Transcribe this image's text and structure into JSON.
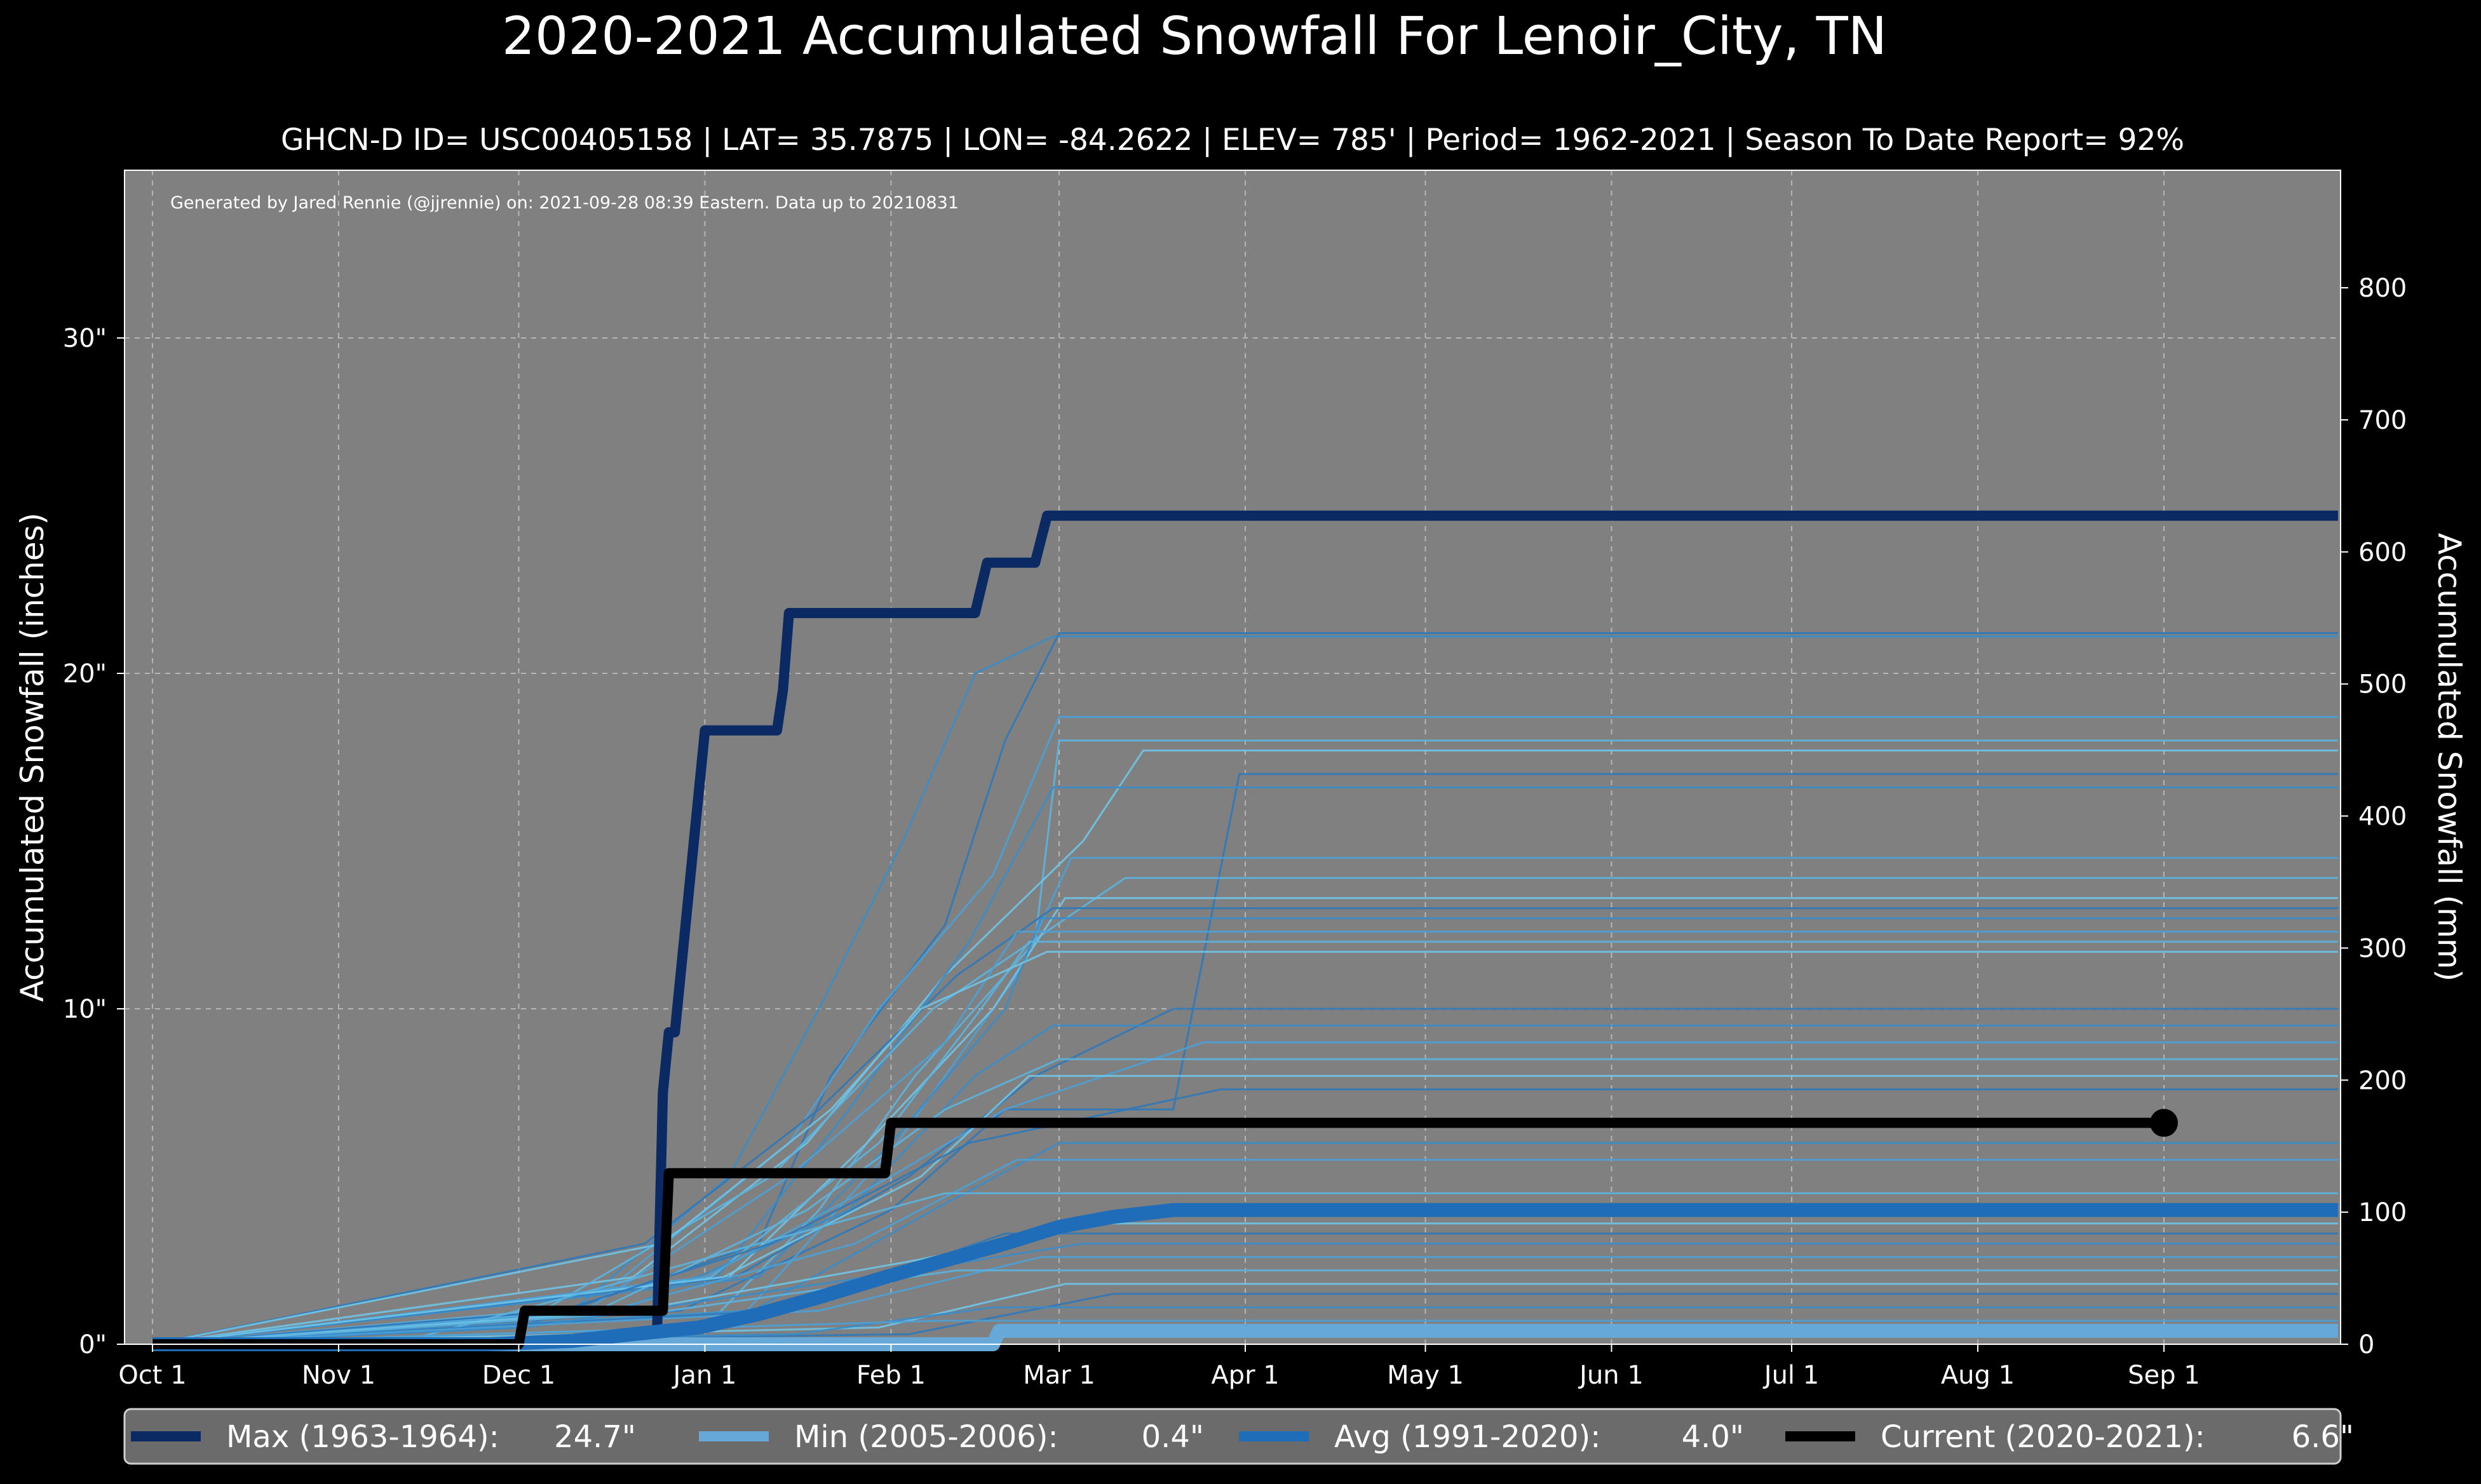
{
  "title": "2020-2021 Accumulated Snowfall For Lenoir_City, TN",
  "subtitle": "GHCN-D ID= USC00405158 | LAT= 35.7875 | LON= -84.2622 | ELEV= 785' | Period= 1962-2021 | Season To Date Report= 92%",
  "credit": "Generated by Jared Rennie (@jjrennie) on: 2021-09-28 08:39 Eastern. Data up to 20210831",
  "colors": {
    "background": "#000000",
    "plot_background": "#808080",
    "max": "#0b2a63",
    "min": "#66a9d9",
    "avg": "#1f6cb8",
    "current": "#000000",
    "historical": [
      "#2f78b8",
      "#3a8cc8",
      "#4aa0d6",
      "#5bb2df",
      "#6fc3e6"
    ]
  },
  "chart_data": {
    "type": "line",
    "grid": true,
    "ylim_in": [
      0,
      35
    ],
    "ylim_mm": [
      0,
      889
    ],
    "xlabel": "",
    "ylabel_left": "Accumulated Snowfall (inches)",
    "ylabel_right": "Accumulated Snowfall (mm)",
    "x_ticks": [
      "Oct 1",
      "Nov 1",
      "Dec 1",
      "Jan 1",
      "Feb 1",
      "Mar 1",
      "Apr 1",
      "May 1",
      "Jun 1",
      "Jul 1",
      "Aug 1",
      "Sep 1"
    ],
    "y_ticks_left": [
      "0\"",
      "10\"",
      "20\"",
      "30\""
    ],
    "y_tick_values_left": [
      0,
      10,
      20,
      30
    ],
    "y_ticks_right": [
      "0",
      "100",
      "200",
      "300",
      "400",
      "500",
      "600",
      "700",
      "800"
    ],
    "y_tick_values_right": [
      0,
      100,
      200,
      300,
      400,
      500,
      600,
      700,
      800
    ],
    "legend_position": "bottom",
    "legend": [
      {
        "label": "Max (1963-1964):",
        "value": "24.7\"",
        "color": "#0b2a63"
      },
      {
        "label": "Min (2005-2006):",
        "value": "0.4\"",
        "color": "#66a9d9"
      },
      {
        "label": "Avg (1991-2020):",
        "value": "4.0\"",
        "color": "#1f6cb8"
      },
      {
        "label": "Current (2020-2021):",
        "value": "6.6\"",
        "color": "#000000"
      }
    ],
    "series": [
      {
        "name": "Max (1963-1964)",
        "color": "#0b2a63",
        "x": [
          "Oct 1",
          "Nov 15",
          "Dec 1",
          "Dec 15",
          "Dec 24",
          "Dec 25",
          "Dec 26",
          "Dec 27",
          "Jan 1",
          "Jan 13",
          "Jan 14",
          "Jan 15",
          "Feb 15",
          "Feb 17",
          "Feb 25",
          "Feb 27",
          "Sep 30"
        ],
        "y": [
          0,
          0,
          0,
          0,
          0,
          7.5,
          9.3,
          9.3,
          18.3,
          18.3,
          19.5,
          21.8,
          21.8,
          23.3,
          23.3,
          24.7,
          24.7
        ]
      },
      {
        "name": "Min (2005-2006)",
        "color": "#66a9d9",
        "x": [
          "Oct 1",
          "Feb 18",
          "Feb 19",
          "Sep 30"
        ],
        "y": [
          0,
          0,
          0.4,
          0.4
        ]
      },
      {
        "name": "Avg (1991-2020)",
        "color": "#1f6cb8",
        "x": [
          "Oct 1",
          "Nov 26",
          "Dec 10",
          "Dec 20",
          "Dec 31",
          "Jan 10",
          "Jan 20",
          "Jan 31",
          "Feb 10",
          "Feb 20",
          "Mar 1",
          "Mar 10",
          "Mar 20",
          "Apr 1",
          "Sep 30"
        ],
        "y": [
          0,
          0,
          0.1,
          0.3,
          0.5,
          0.9,
          1.4,
          2.0,
          2.5,
          3.0,
          3.5,
          3.8,
          4.0,
          4.0,
          4.0
        ]
      },
      {
        "name": "Current (2020-2021)",
        "color": "#000000",
        "x": [
          "Oct 1",
          "Dec 1",
          "Dec 2",
          "Dec 25",
          "Dec 26",
          "Jan 31",
          "Feb 1",
          "Sep 1"
        ],
        "y": [
          0,
          0,
          1.0,
          1.0,
          5.1,
          5.1,
          6.6,
          6.6
        ]
      }
    ],
    "historical_seasons": [
      {
        "x": [
          "Oct 1",
          "Dec 1",
          "Jan 10",
          "Jan 22",
          "Feb 10",
          "Feb 20",
          "Mar 1",
          "Sep 30"
        ],
        "y": [
          0,
          0.5,
          3,
          8,
          12.5,
          18,
          21.2,
          21.2
        ]
      },
      {
        "x": [
          "Oct 1",
          "Dec 10",
          "Jan 5",
          "Jan 20",
          "Feb 3",
          "Feb 15",
          "Feb 28",
          "Sep 30"
        ],
        "y": [
          0,
          1,
          5,
          10,
          15,
          20,
          21.1,
          21.1
        ]
      },
      {
        "x": [
          "Oct 1",
          "Dec 15",
          "Jan 15",
          "Jan 30",
          "Feb 18",
          "Mar 1",
          "Sep 30"
        ],
        "y": [
          0,
          1.5,
          6,
          10,
          14,
          18.7,
          18.7
        ]
      },
      {
        "x": [
          "Oct 1",
          "Jan 1",
          "Jan 20",
          "Feb 5",
          "Feb 25",
          "Mar 1",
          "Sep 30"
        ],
        "y": [
          0,
          0.5,
          4,
          8,
          12,
          18,
          18
        ]
      },
      {
        "x": [
          "Oct 1",
          "Dec 20",
          "Jan 18",
          "Feb 10",
          "Mar 5",
          "Mar 15",
          "Sep 30"
        ],
        "y": [
          0,
          2,
          6,
          11,
          15,
          17.7,
          17.7
        ]
      },
      {
        "x": [
          "Oct 1",
          "Dec 28",
          "Feb 1",
          "Feb 20",
          "Mar 20",
          "Mar 31",
          "Sep 30"
        ],
        "y": [
          0,
          1,
          4,
          7,
          7,
          17,
          17
        ]
      },
      {
        "x": [
          "Oct 1",
          "Jan 3",
          "Jan 25",
          "Feb 14",
          "Feb 28",
          "Sep 30"
        ],
        "y": [
          0,
          2,
          7,
          12,
          16.6,
          16.6
        ]
      },
      {
        "x": [
          "Oct 1",
          "Jan 8",
          "Feb 2",
          "Feb 22",
          "Mar 3",
          "Sep 30"
        ],
        "y": [
          0,
          1,
          6,
          11,
          14.5,
          14.5
        ]
      },
      {
        "x": [
          "Oct 1",
          "Dec 5",
          "Jan 12",
          "Feb 8",
          "Mar 12",
          "Sep 30"
        ],
        "y": [
          0,
          1,
          5,
          10,
          13.9,
          13.9
        ]
      },
      {
        "x": [
          "Oct 1",
          "Jan 5",
          "Jan 28",
          "Feb 18",
          "Mar 2",
          "Sep 30"
        ],
        "y": [
          0,
          2,
          6,
          10,
          13.3,
          13.3
        ]
      },
      {
        "x": [
          "Oct 1",
          "Dec 22",
          "Jan 20",
          "Feb 12",
          "Feb 28",
          "Sep 30"
        ],
        "y": [
          0,
          3,
          7,
          11,
          13,
          13
        ]
      },
      {
        "x": [
          "Oct 1",
          "Jan 10",
          "Feb 1",
          "Feb 20",
          "Feb 26",
          "Sep 30"
        ],
        "y": [
          0,
          2,
          6,
          10,
          12.7,
          12.7
        ]
      },
      {
        "x": [
          "Oct 1",
          "Dec 12",
          "Jan 15",
          "Feb 10",
          "Feb 22",
          "Sep 30"
        ],
        "y": [
          0,
          1,
          5,
          9,
          12.3,
          12.3
        ]
      },
      {
        "x": [
          "Oct 1",
          "Jan 2",
          "Jan 30",
          "Feb 16",
          "Feb 24",
          "Sep 30"
        ],
        "y": [
          0,
          2,
          6,
          10,
          12,
          12
        ]
      },
      {
        "x": [
          "Oct 1",
          "Dec 25",
          "Jan 22",
          "Feb 6",
          "Feb 27",
          "Sep 30"
        ],
        "y": [
          0,
          3,
          7,
          10,
          11.7,
          11.7
        ]
      },
      {
        "x": [
          "Oct 1",
          "Jan 6",
          "Feb 4",
          "Feb 25",
          "Mar 20",
          "Sep 30"
        ],
        "y": [
          0,
          2,
          5,
          8,
          10,
          10
        ]
      },
      {
        "x": [
          "Oct 1",
          "Dec 18",
          "Jan 25",
          "Feb 15",
          "Feb 28",
          "Sep 30"
        ],
        "y": [
          0,
          1,
          4,
          8,
          9.5,
          9.5
        ]
      },
      {
        "x": [
          "Oct 1",
          "Jan 1",
          "Feb 1",
          "Feb 20",
          "Mar 25",
          "Sep 30"
        ],
        "y": [
          0,
          2,
          5,
          7,
          9,
          9
        ]
      },
      {
        "x": [
          "Oct 1",
          "Dec 14",
          "Jan 18",
          "Feb 10",
          "Mar 1",
          "Sep 30"
        ],
        "y": [
          0,
          1,
          4,
          7,
          8.5,
          8.5
        ]
      },
      {
        "x": [
          "Oct 1",
          "Jan 4",
          "Feb 6",
          "Feb 24",
          "Sep 30"
        ],
        "y": [
          0,
          2,
          5,
          8,
          8
        ]
      },
      {
        "x": [
          "Oct 1",
          "Dec 8",
          "Jan 12",
          "Feb 14",
          "Mar 28",
          "Sep 30"
        ],
        "y": [
          0,
          1,
          3,
          6,
          7.6,
          7.6
        ]
      },
      {
        "x": [
          "Oct 1",
          "Jan 9",
          "Feb 8",
          "Mar 1",
          "Sep 30"
        ],
        "y": [
          0,
          1,
          4,
          6,
          6
        ]
      },
      {
        "x": [
          "Oct 1",
          "Dec 16",
          "Jan 26",
          "Feb 22",
          "Sep 30"
        ],
        "y": [
          0,
          1,
          3,
          5.5,
          5.5
        ]
      },
      {
        "x": [
          "Oct 1",
          "Nov 10",
          "Dec 5",
          "Jan 10",
          "Feb 10",
          "Sep 30"
        ],
        "y": [
          0,
          0,
          1.2,
          3,
          4.5,
          4.5
        ]
      },
      {
        "x": [
          "Oct 1",
          "Dec 20",
          "Feb 5",
          "Mar 8",
          "Sep 30"
        ],
        "y": [
          0,
          1,
          2.5,
          3.6,
          3.6
        ]
      },
      {
        "x": [
          "Oct 1",
          "Jan 14",
          "Feb 20",
          "Sep 30"
        ],
        "y": [
          0,
          1,
          3.3,
          3.3
        ]
      },
      {
        "x": [
          "Oct 1",
          "Dec 2",
          "Jan 28",
          "Mar 5",
          "Sep 30"
        ],
        "y": [
          0,
          0.5,
          2,
          3,
          3
        ]
      },
      {
        "x": [
          "Oct 1",
          "Jan 20",
          "Feb 26",
          "Sep 30"
        ],
        "y": [
          0,
          1,
          2.6,
          2.6
        ]
      },
      {
        "x": [
          "Oct 1",
          "Dec 26",
          "Feb 12",
          "Sep 30"
        ],
        "y": [
          0,
          1,
          2.2,
          2.2
        ]
      },
      {
        "x": [
          "Oct 1",
          "Jan 30",
          "Mar 2",
          "Sep 30"
        ],
        "y": [
          0,
          0.5,
          1.8,
          1.8
        ]
      },
      {
        "x": [
          "Oct 1",
          "Feb 4",
          "Mar 10",
          "Sep 30"
        ],
        "y": [
          0,
          0.3,
          1.5,
          1.5
        ]
      },
      {
        "x": [
          "Oct 1",
          "Jan 16",
          "Feb 18",
          "Sep 30"
        ],
        "y": [
          0,
          0.3,
          1.1,
          1.1
        ]
      },
      {
        "x": [
          "Oct 1",
          "Feb 9",
          "Sep 30"
        ],
        "y": [
          0,
          0.7,
          0.7
        ]
      }
    ]
  }
}
